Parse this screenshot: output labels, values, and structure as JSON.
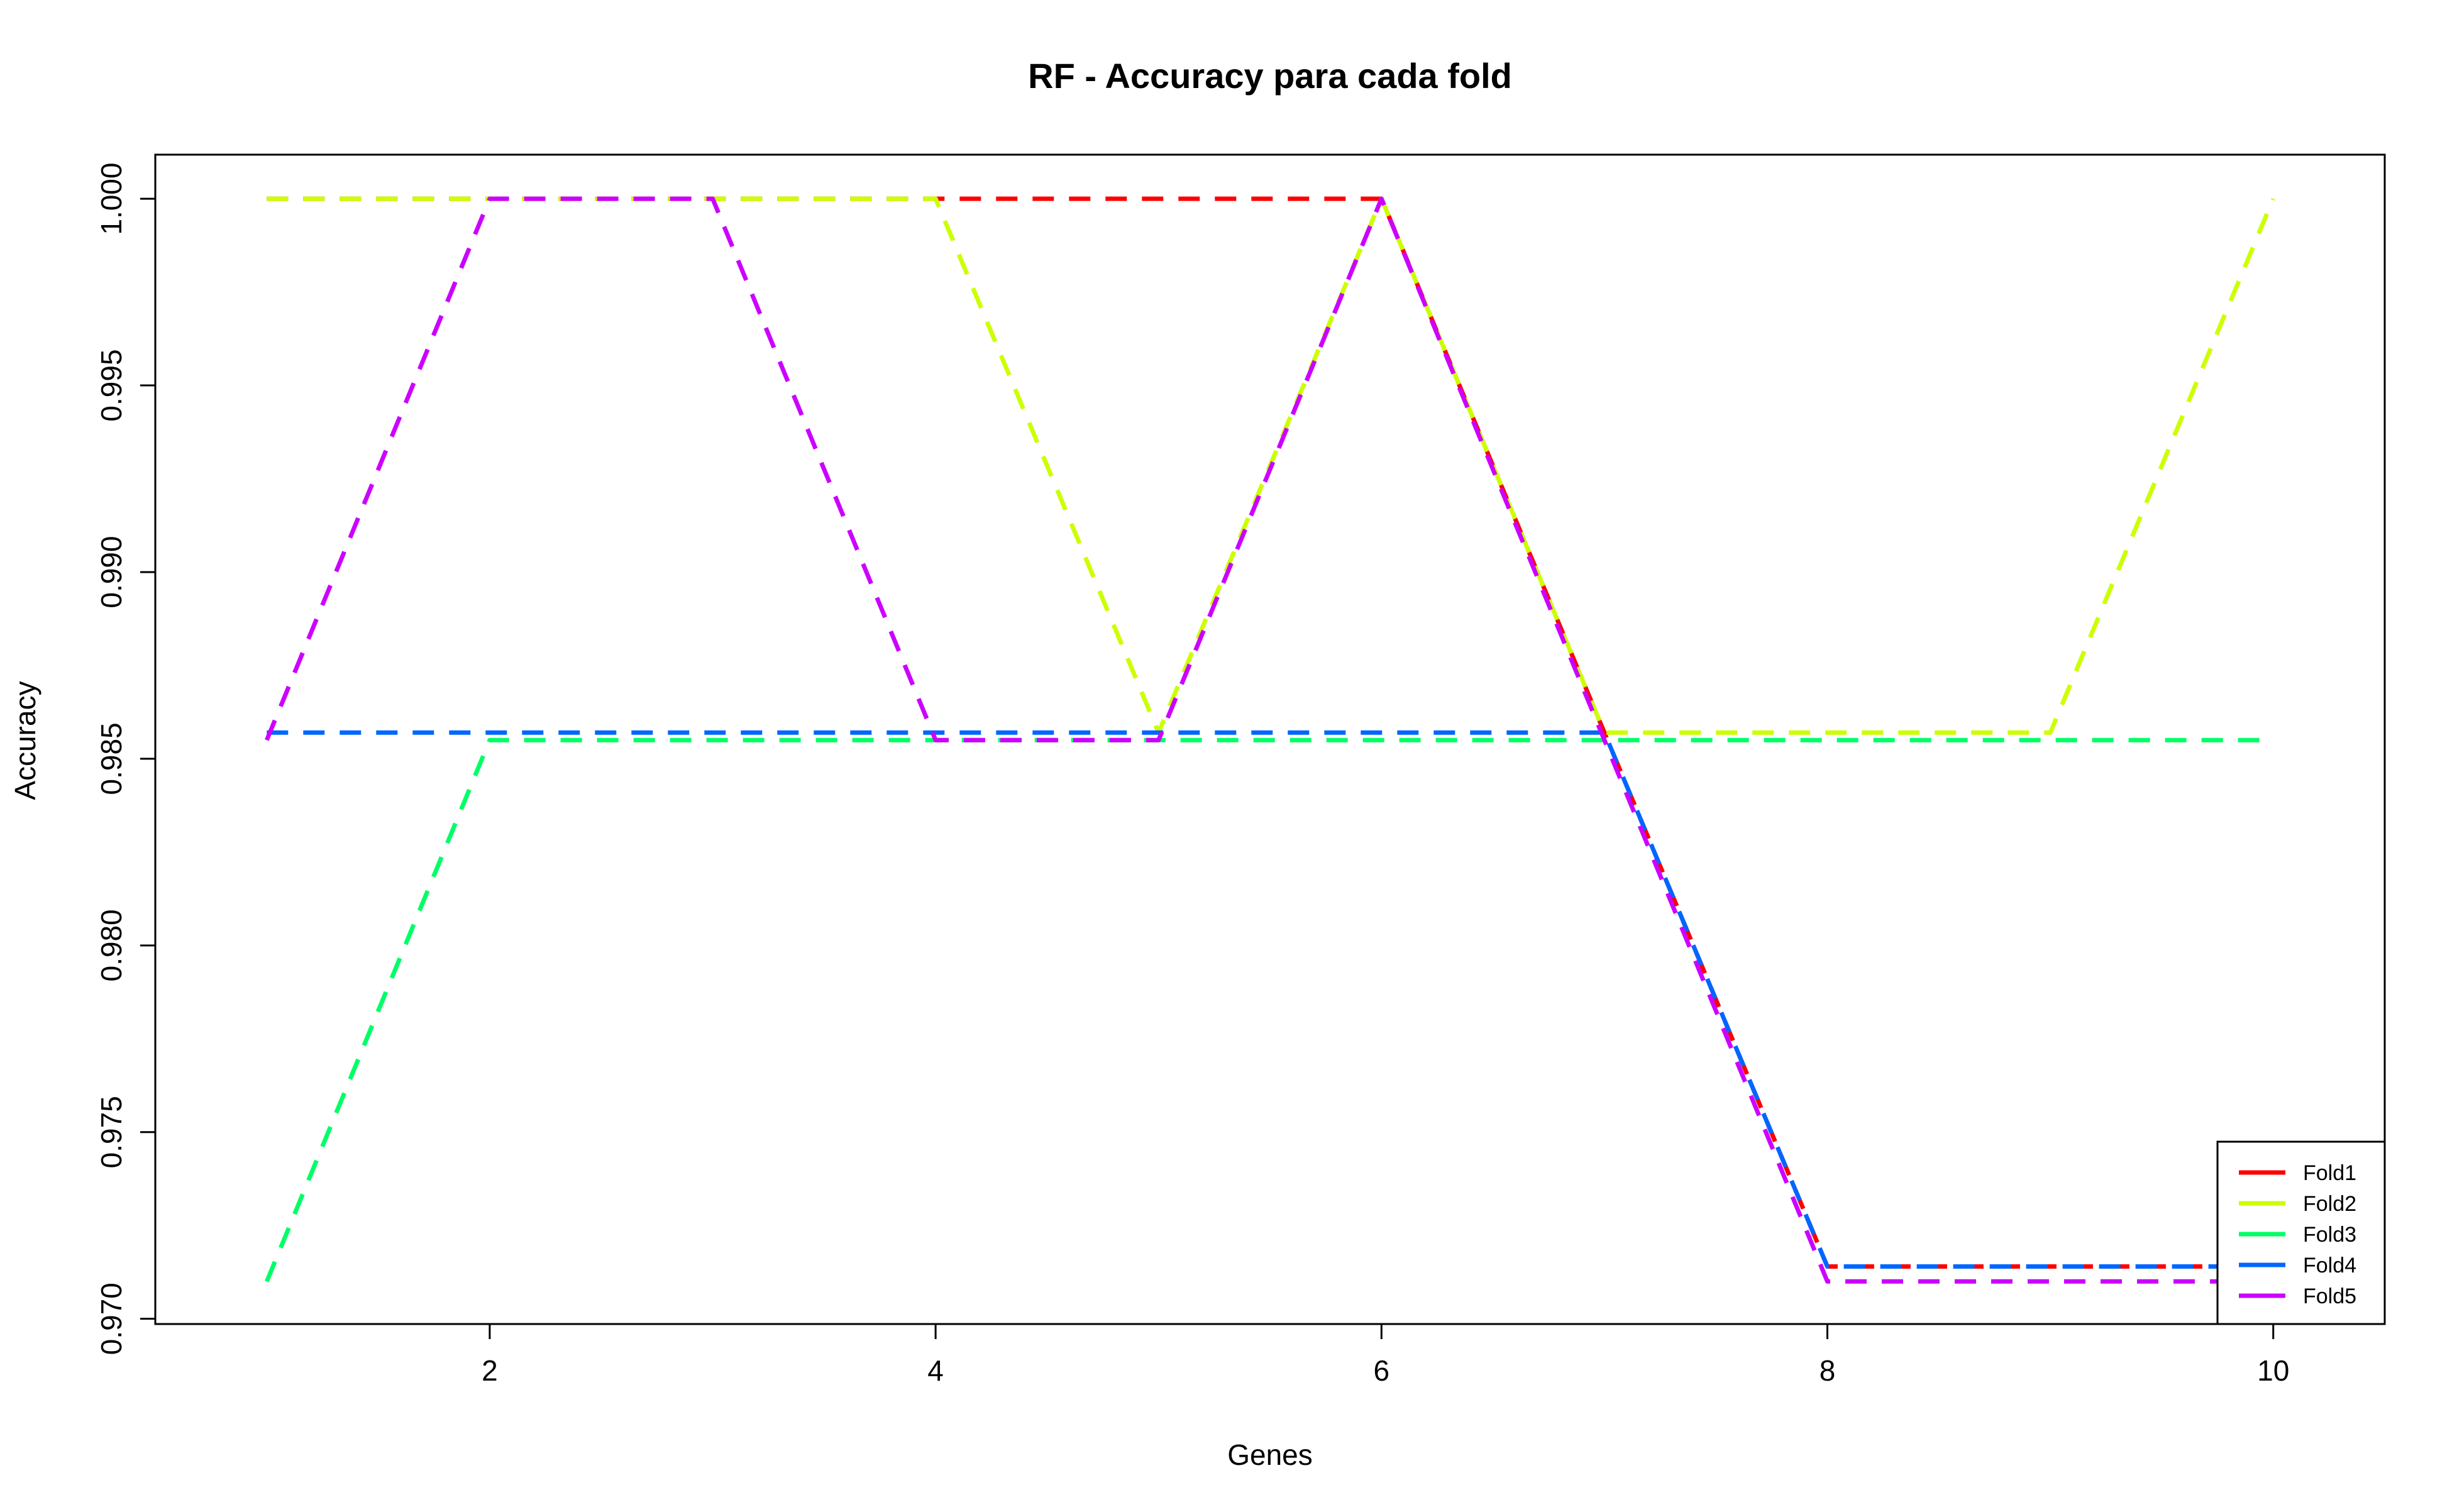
{
  "chart_data": {
    "type": "line",
    "title": "RF - Accuracy para cada fold",
    "xlabel": "Genes",
    "ylabel": "Accuracy",
    "x": [
      1,
      2,
      3,
      4,
      5,
      6,
      7,
      8,
      9,
      10
    ],
    "xlim": [
      0.5,
      10.5
    ],
    "ylim": [
      0.96986,
      1.00118
    ],
    "x_ticks": [
      2,
      4,
      6,
      8,
      10
    ],
    "x_tick_labels": [
      "2",
      "4",
      "6",
      "8",
      "10"
    ],
    "y_ticks": [
      0.97,
      0.975,
      0.98,
      0.985,
      0.99,
      0.995,
      1.0
    ],
    "y_tick_labels": [
      "0.970",
      "0.975",
      "0.980",
      "0.985",
      "0.990",
      "0.995",
      "1.000"
    ],
    "grid": false,
    "line_style": "dashed",
    "legend_position": "bottom-right",
    "series": [
      {
        "name": "Fold1",
        "color": "#FF0000",
        "values": [
          1.0,
          1.0,
          1.0,
          1.0,
          1.0,
          1.0,
          0.9857,
          0.9714,
          0.9714,
          0.9714
        ]
      },
      {
        "name": "Fold2",
        "color": "#CCFF00",
        "values": [
          1.0,
          1.0,
          1.0,
          1.0,
          0.9857,
          1.0,
          0.9857,
          0.9857,
          0.9857,
          1.0
        ]
      },
      {
        "name": "Fold3",
        "color": "#00FF66",
        "values": [
          0.971,
          0.9855,
          0.9855,
          0.9855,
          0.9855,
          0.9855,
          0.9855,
          0.9855,
          0.9855,
          0.9855
        ]
      },
      {
        "name": "Fold4",
        "color": "#0066FF",
        "values": [
          0.9857,
          0.9857,
          0.9857,
          0.9857,
          0.9857,
          0.9857,
          0.9857,
          0.9714,
          0.9714,
          0.9714
        ]
      },
      {
        "name": "Fold5",
        "color": "#CC00FF",
        "values": [
          0.9855,
          1.0,
          1.0,
          0.9855,
          0.9855,
          1.0,
          0.9855,
          0.971,
          0.971,
          0.971
        ]
      }
    ]
  }
}
